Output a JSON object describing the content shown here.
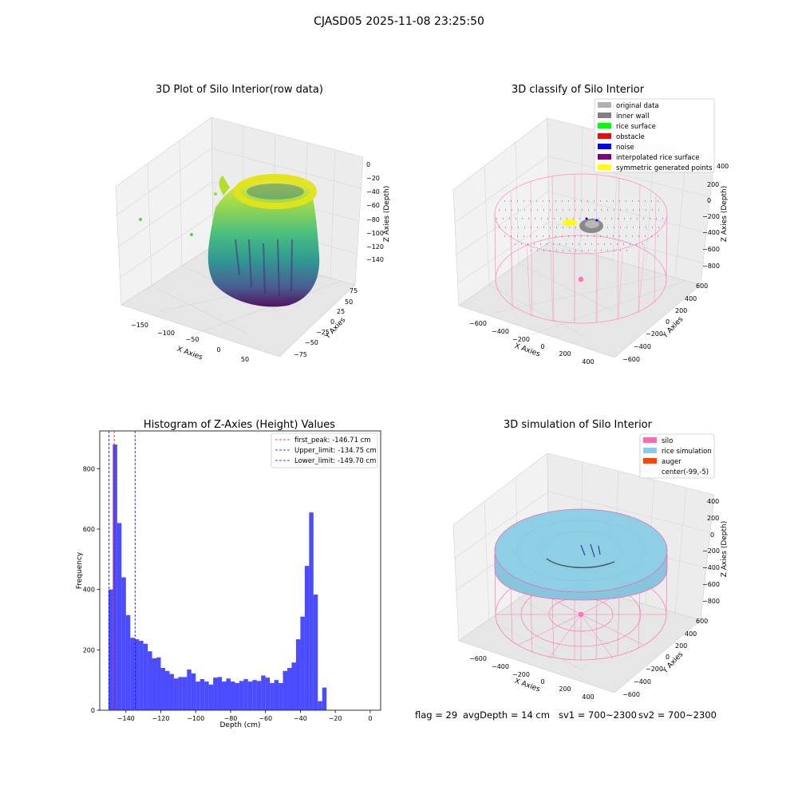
{
  "figure": {
    "suptitle": "CJASD05 2025-11-08 23:25:50",
    "footer": {
      "flag": "flag = 29",
      "avg_depth": "avgDepth = 14 cm",
      "sv1": "sv1 = 700~2300",
      "sv2": "sv2 = 700~2300"
    }
  },
  "panels": {
    "raw": {
      "title": "3D Plot of Silo Interior(row data)",
      "xlabel": "X Axies",
      "ylabel": "Y Axies",
      "zlabel": "Z Axies (Depth)",
      "xticks": [
        "−150",
        "−100",
        "−50",
        "0",
        "50"
      ],
      "yticks": [
        "75",
        "50",
        "25",
        "0",
        "−25",
        "−50",
        "−75"
      ],
      "zticks": [
        "0",
        "−20",
        "−40",
        "−60",
        "−80",
        "−100",
        "−120",
        "−140"
      ]
    },
    "classify": {
      "title": "3D classify of Silo Interior",
      "xlabel": "X Axies",
      "ylabel": "Y Axies",
      "zlabel": "Z Axies (Depth)",
      "xticks": [
        "−600",
        "−400",
        "−200",
        "0",
        "200",
        "400"
      ],
      "yticks": [
        "600",
        "400",
        "200",
        "0",
        "−200",
        "−400",
        "−600"
      ],
      "zticks": [
        "200",
        "0",
        "−200",
        "−400",
        "−600",
        "−800"
      ],
      "legend": [
        {
          "label": "original data",
          "color": "#b0b0b0"
        },
        {
          "label": "inner wall",
          "color": "#808080"
        },
        {
          "label": "rice surface",
          "color": "#00ff00"
        },
        {
          "label": "obstacle",
          "color": "#ff0000"
        },
        {
          "label": "noise",
          "color": "#0000ff"
        },
        {
          "label": "interpolated rice surface",
          "color": "#800080"
        },
        {
          "label": "symmetric generated points",
          "color": "#ffff00"
        }
      ],
      "hidden_tick": "400"
    },
    "simulation": {
      "title": "3D simulation of Silo Interior",
      "xlabel": "X Axies",
      "ylabel": "Y Axies",
      "zlabel": "Z Axies (Depth)",
      "xticks": [
        "−600",
        "−400",
        "−200",
        "0",
        "200",
        "400"
      ],
      "yticks": [
        "600",
        "400",
        "200",
        "0",
        "−200",
        "−400",
        "−600"
      ],
      "zticks": [
        "400",
        "200",
        "0",
        "−200",
        "−400",
        "−600",
        "−800"
      ],
      "legend": [
        {
          "label": "silo",
          "color": "#ff69b4"
        },
        {
          "label": "rice simulation",
          "color": "#87ceeb"
        },
        {
          "label": "auger",
          "color": "#ff4500"
        },
        {
          "label": "center(-99,-5)",
          "color": ""
        }
      ]
    }
  },
  "chart_data": {
    "type": "bar",
    "title": "Histogram of Z-Axies (Height) Values",
    "xlabel": "Depth (cm)",
    "ylabel": "Frequency",
    "xlim": [
      -155,
      6
    ],
    "ylim": [
      0,
      925
    ],
    "xticks": [
      -140,
      -120,
      -100,
      -80,
      -60,
      -40,
      -20,
      0
    ],
    "xtick_labels": [
      "−140",
      "−120",
      "−100",
      "−80",
      "−60",
      "−40",
      "−20",
      "0"
    ],
    "yticks": [
      0,
      200,
      400,
      600,
      800
    ],
    "yticks_labels": [
      "0",
      "200",
      "400",
      "600",
      "800"
    ],
    "bar_color": "#0000ff",
    "bin_start": -150,
    "bin_width": 2.5,
    "counts": [
      400,
      880,
      620,
      440,
      315,
      240,
      235,
      230,
      220,
      195,
      172,
      175,
      140,
      130,
      120,
      105,
      110,
      110,
      135,
      122,
      95,
      103,
      95,
      85,
      108,
      110,
      95,
      105,
      95,
      90,
      97,
      103,
      95,
      100,
      97,
      115,
      108,
      90,
      100,
      90,
      130,
      140,
      158,
      235,
      310,
      478,
      655,
      383,
      30,
      75
    ],
    "vlines": [
      {
        "x": -146.71,
        "color": "#ff0000",
        "label": "first_peak: -146.71 cm"
      },
      {
        "x": -134.75,
        "color": "#0000ff",
        "label": "Upper_limit: -134.75 cm"
      },
      {
        "x": -149.7,
        "color": "#0000ff",
        "label": "Lower_limit: -149.70 cm"
      }
    ],
    "legend_position": "upper right"
  }
}
